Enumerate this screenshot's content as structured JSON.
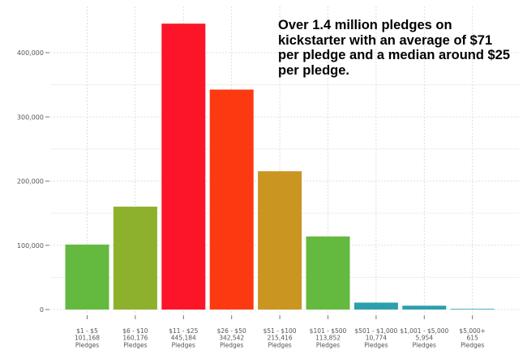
{
  "chart_data": {
    "type": "bar",
    "title": "",
    "xlabel": "",
    "ylabel": "",
    "ylim": [
      0,
      450000
    ],
    "yticks": [
      0,
      100000,
      200000,
      300000,
      400000
    ],
    "ytick_labels": [
      "0",
      "100,000",
      "200,000",
      "300,000",
      "400,000"
    ],
    "grid": true,
    "categories": [
      "$1 - $5",
      "$6 - $10",
      "$11 - $25",
      "$26 - $50",
      "$51 - $100",
      "$101 - $500",
      "$501 - $1,000",
      "$1,001 - $5,000",
      "$5,000+"
    ],
    "count_labels": [
      "101,168",
      "160,176",
      "445,184",
      "342,542",
      "215,416",
      "113,852",
      "10,774",
      "5,954",
      "615"
    ],
    "unit_label": "Pledges",
    "values": [
      101168,
      160176,
      445184,
      342542,
      215416,
      113852,
      10774,
      5954,
      615
    ],
    "colors": [
      "#64b93f",
      "#8db12c",
      "#fc1428",
      "#fd3911",
      "#ca9520",
      "#64b93f",
      "#2b9fae",
      "#2b9fae",
      "#2b9fae"
    ],
    "annotation_lines": [
      "Over 1.4 million pledges on",
      "kickstarter with an average of $71",
      "per pledge and a median around $25",
      "per pledge."
    ]
  }
}
